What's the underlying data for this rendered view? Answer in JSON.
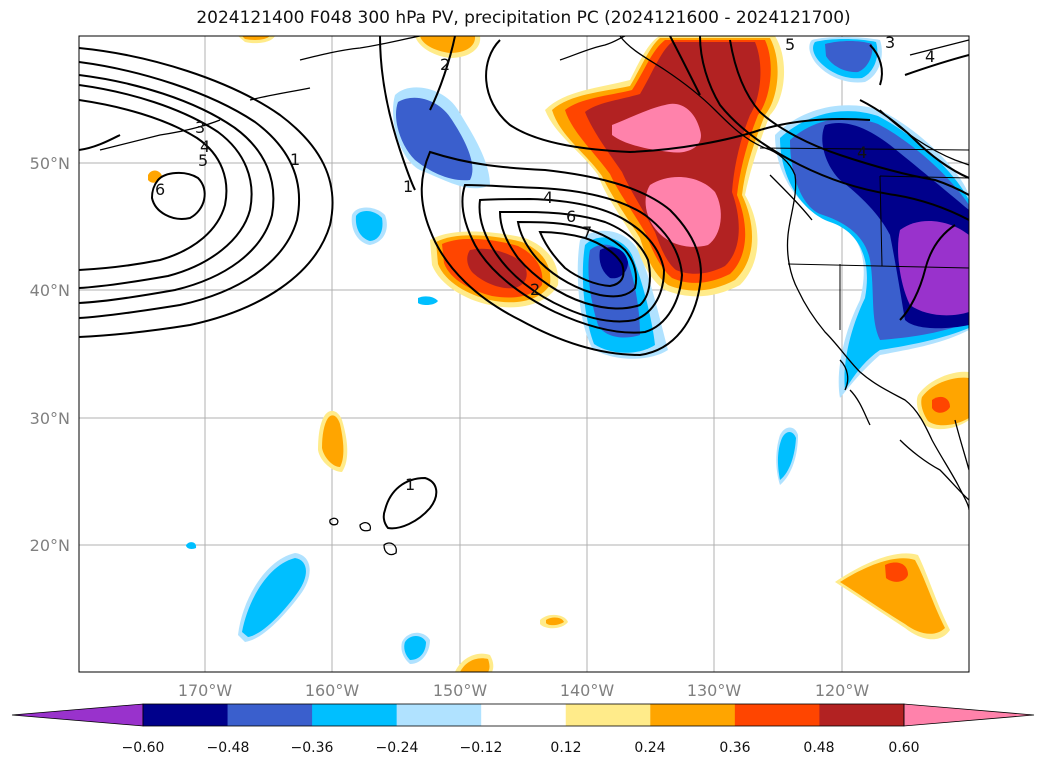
{
  "title": "2024121400 F048 300 hPa PV, precipitation PC (2024121600 - 2024121700)",
  "lat_labels": [
    "50°N",
    "40°N",
    "30°N",
    "20°N"
  ],
  "lon_labels": [
    "170°W",
    "160°W",
    "150°W",
    "140°W",
    "130°W",
    "120°W"
  ],
  "colorbar": {
    "ticks": [
      "−0.60",
      "−0.48",
      "−0.36",
      "−0.24",
      "−0.12",
      "0.12",
      "0.24",
      "0.36",
      "0.48",
      "0.60"
    ],
    "colors": [
      "#9932cc",
      "#00008b",
      "#3a5fcd",
      "#00bfff",
      "#b0e2ff",
      "#ffffff",
      "#ffeb8a",
      "#ffa500",
      "#ff4500",
      "#b22222",
      "#ff82ab"
    ]
  },
  "contour_labels": [
    "1",
    "1",
    "1",
    "2",
    "2",
    "3",
    "3",
    "4",
    "4",
    "4",
    "4",
    "5",
    "5",
    "6",
    "6",
    "7"
  ]
}
